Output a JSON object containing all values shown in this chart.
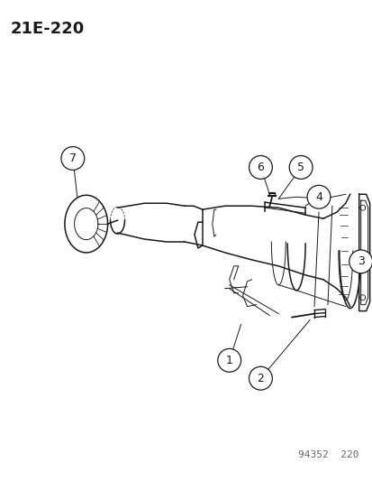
{
  "page_id": "21E-220",
  "watermark": "94352  220",
  "bg": "#ffffff",
  "lc": "#1a1a1a",
  "title_fs": 13,
  "callout_fs": 9,
  "wm_fs": 8
}
